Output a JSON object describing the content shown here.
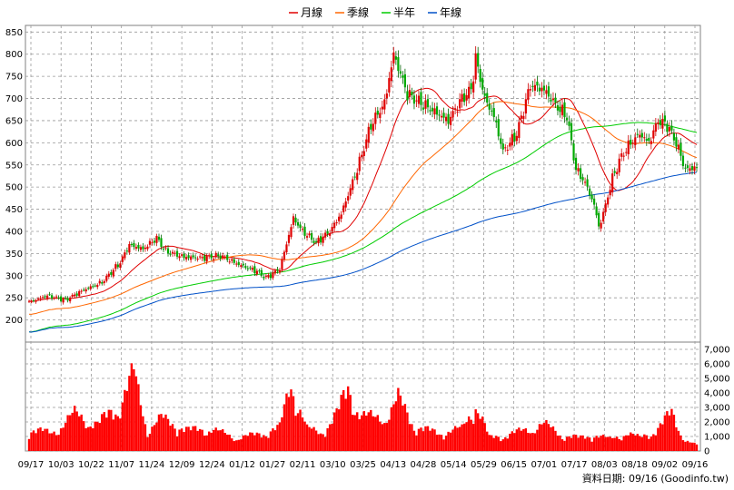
{
  "chart_data": {
    "type": "candlestick+volume",
    "legend": [
      {
        "label": "月線",
        "color": "#e00000"
      },
      {
        "label": "季線",
        "color": "#ff6600"
      },
      {
        "label": "半年",
        "color": "#00cc00"
      },
      {
        "label": "年線",
        "color": "#0050c8"
      }
    ],
    "price_axis": {
      "ticks": [
        200,
        250,
        300,
        350,
        400,
        450,
        500,
        550,
        600,
        650,
        700,
        750,
        800,
        850
      ],
      "range": [
        150,
        865
      ]
    },
    "volume_axis": {
      "ticks": [
        "0",
        "1,000",
        "2,000",
        "3,000",
        "4,000",
        "5,000",
        "6,000",
        "7,000"
      ],
      "range": [
        0,
        7500
      ]
    },
    "x_labels": [
      "09/17",
      "10/03",
      "10/22",
      "11/07",
      "11/24",
      "12/09",
      "12/24",
      "01/12",
      "01/27",
      "02/11",
      "03/10",
      "03/25",
      "04/13",
      "04/28",
      "05/14",
      "05/29",
      "06/15",
      "07/01",
      "07/17",
      "08/03",
      "08/18",
      "09/02",
      "09/16"
    ],
    "close_anchors": [
      [
        0,
        240
      ],
      [
        8,
        255
      ],
      [
        16,
        245
      ],
      [
        24,
        268
      ],
      [
        32,
        285
      ],
      [
        40,
        330
      ],
      [
        44,
        370
      ],
      [
        50,
        360
      ],
      [
        56,
        385
      ],
      [
        60,
        355
      ],
      [
        68,
        342
      ],
      [
        76,
        340
      ],
      [
        84,
        345
      ],
      [
        92,
        325
      ],
      [
        100,
        310
      ],
      [
        104,
        295
      ],
      [
        110,
        315
      ],
      [
        116,
        430
      ],
      [
        120,
        400
      ],
      [
        126,
        375
      ],
      [
        132,
        400
      ],
      [
        137,
        440
      ],
      [
        144,
        540
      ],
      [
        150,
        640
      ],
      [
        156,
        690
      ],
      [
        160,
        800
      ],
      [
        166,
        710
      ],
      [
        172,
        690
      ],
      [
        178,
        670
      ],
      [
        184,
        650
      ],
      [
        190,
        700
      ],
      [
        194,
        720
      ],
      [
        196,
        790
      ],
      [
        200,
        700
      ],
      [
        204,
        660
      ],
      [
        208,
        580
      ],
      [
        214,
        620
      ],
      [
        220,
        730
      ],
      [
        226,
        720
      ],
      [
        232,
        680
      ],
      [
        236,
        660
      ],
      [
        240,
        540
      ],
      [
        244,
        510
      ],
      [
        248,
        460
      ],
      [
        250,
        410
      ],
      [
        252,
        440
      ],
      [
        256,
        520
      ],
      [
        260,
        570
      ],
      [
        264,
        600
      ],
      [
        268,
        620
      ],
      [
        272,
        600
      ],
      [
        276,
        650
      ],
      [
        280,
        640
      ],
      [
        284,
        600
      ],
      [
        288,
        540
      ],
      [
        293,
        545
      ]
    ],
    "volume_anchors": [
      [
        0,
        1500
      ],
      [
        10,
        1200
      ],
      [
        20,
        2500
      ],
      [
        30,
        1800
      ],
      [
        40,
        3200
      ],
      [
        46,
        5200
      ],
      [
        52,
        1400
      ],
      [
        58,
        2200
      ],
      [
        70,
        1400
      ],
      [
        80,
        1500
      ],
      [
        90,
        900
      ],
      [
        100,
        1100
      ],
      [
        110,
        1600
      ],
      [
        115,
        4600
      ],
      [
        122,
        1500
      ],
      [
        128,
        1200
      ],
      [
        135,
        2500
      ],
      [
        140,
        4200
      ],
      [
        146,
        2400
      ],
      [
        152,
        2200
      ],
      [
        158,
        2500
      ],
      [
        162,
        3500
      ],
      [
        170,
        1600
      ],
      [
        180,
        1200
      ],
      [
        190,
        1500
      ],
      [
        196,
        3200
      ],
      [
        202,
        900
      ],
      [
        210,
        1100
      ],
      [
        220,
        1500
      ],
      [
        226,
        1800
      ],
      [
        235,
        1000
      ],
      [
        242,
        900
      ],
      [
        248,
        1100
      ],
      [
        255,
        800
      ],
      [
        262,
        1200
      ],
      [
        268,
        900
      ],
      [
        276,
        1500
      ],
      [
        282,
        2600
      ],
      [
        288,
        700
      ],
      [
        293,
        400
      ]
    ]
  },
  "footer": {
    "text": "資料日期: 09/16  (Goodinfo.tw)"
  }
}
